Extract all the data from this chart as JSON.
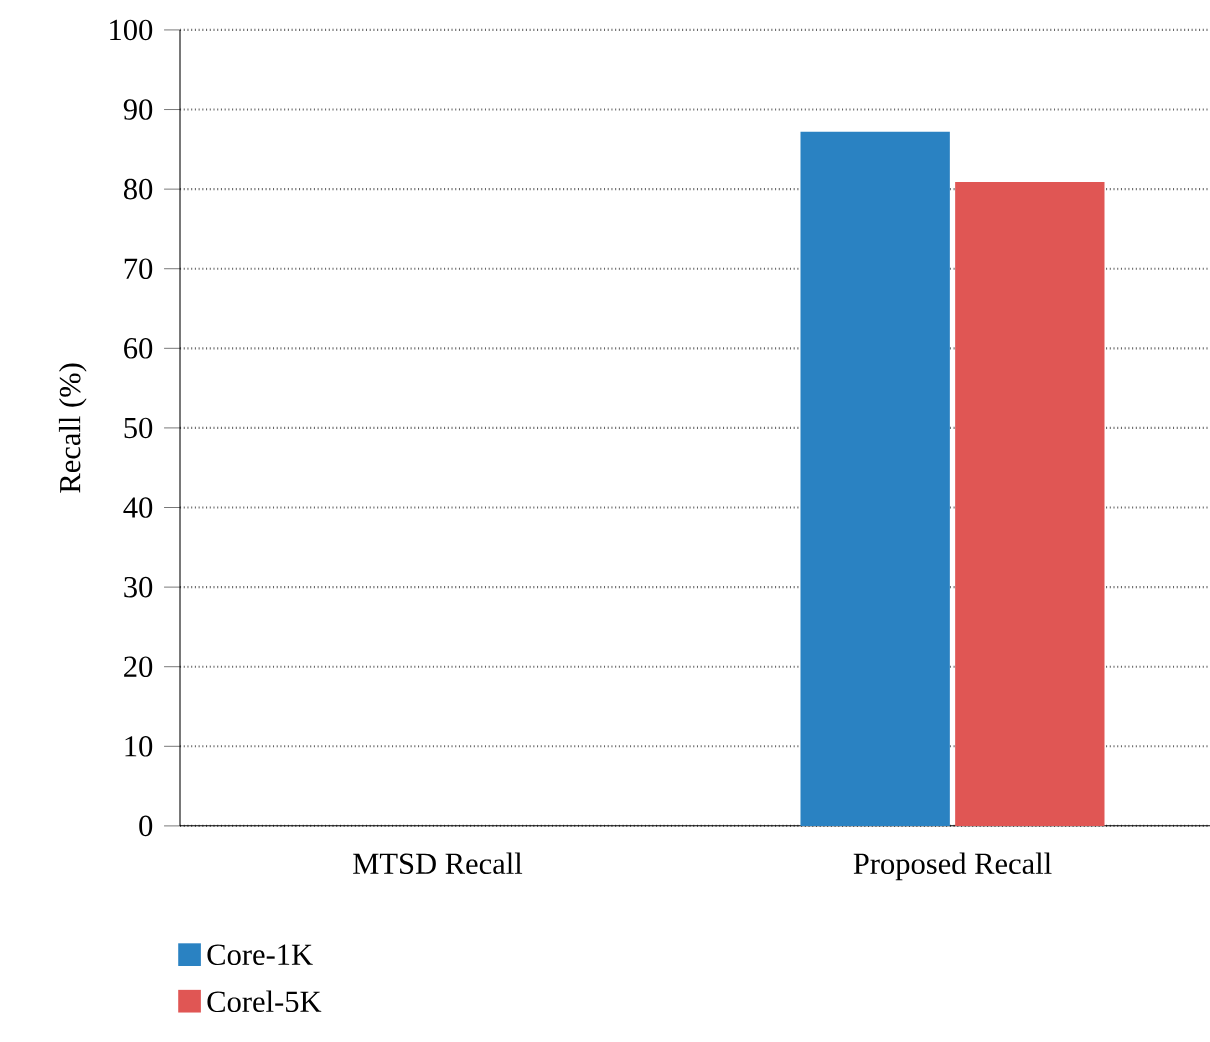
{
  "chart_data": {
    "type": "bar",
    "ylabel": "Recall (%)",
    "categories": [
      "MTSD Recall",
      "Proposed Recall"
    ],
    "series": [
      {
        "name": "Core-1K",
        "color": "#2a82c2",
        "values": [
          null,
          87.2
        ]
      },
      {
        "name": "Corel-5K",
        "color": "#e05654",
        "values": [
          null,
          80.9
        ]
      }
    ],
    "ylim": [
      0,
      100
    ],
    "yticks": [
      0,
      10,
      20,
      30,
      40,
      50,
      60,
      70,
      80,
      90,
      100
    ],
    "grid": "y",
    "legend": "bottom left"
  }
}
